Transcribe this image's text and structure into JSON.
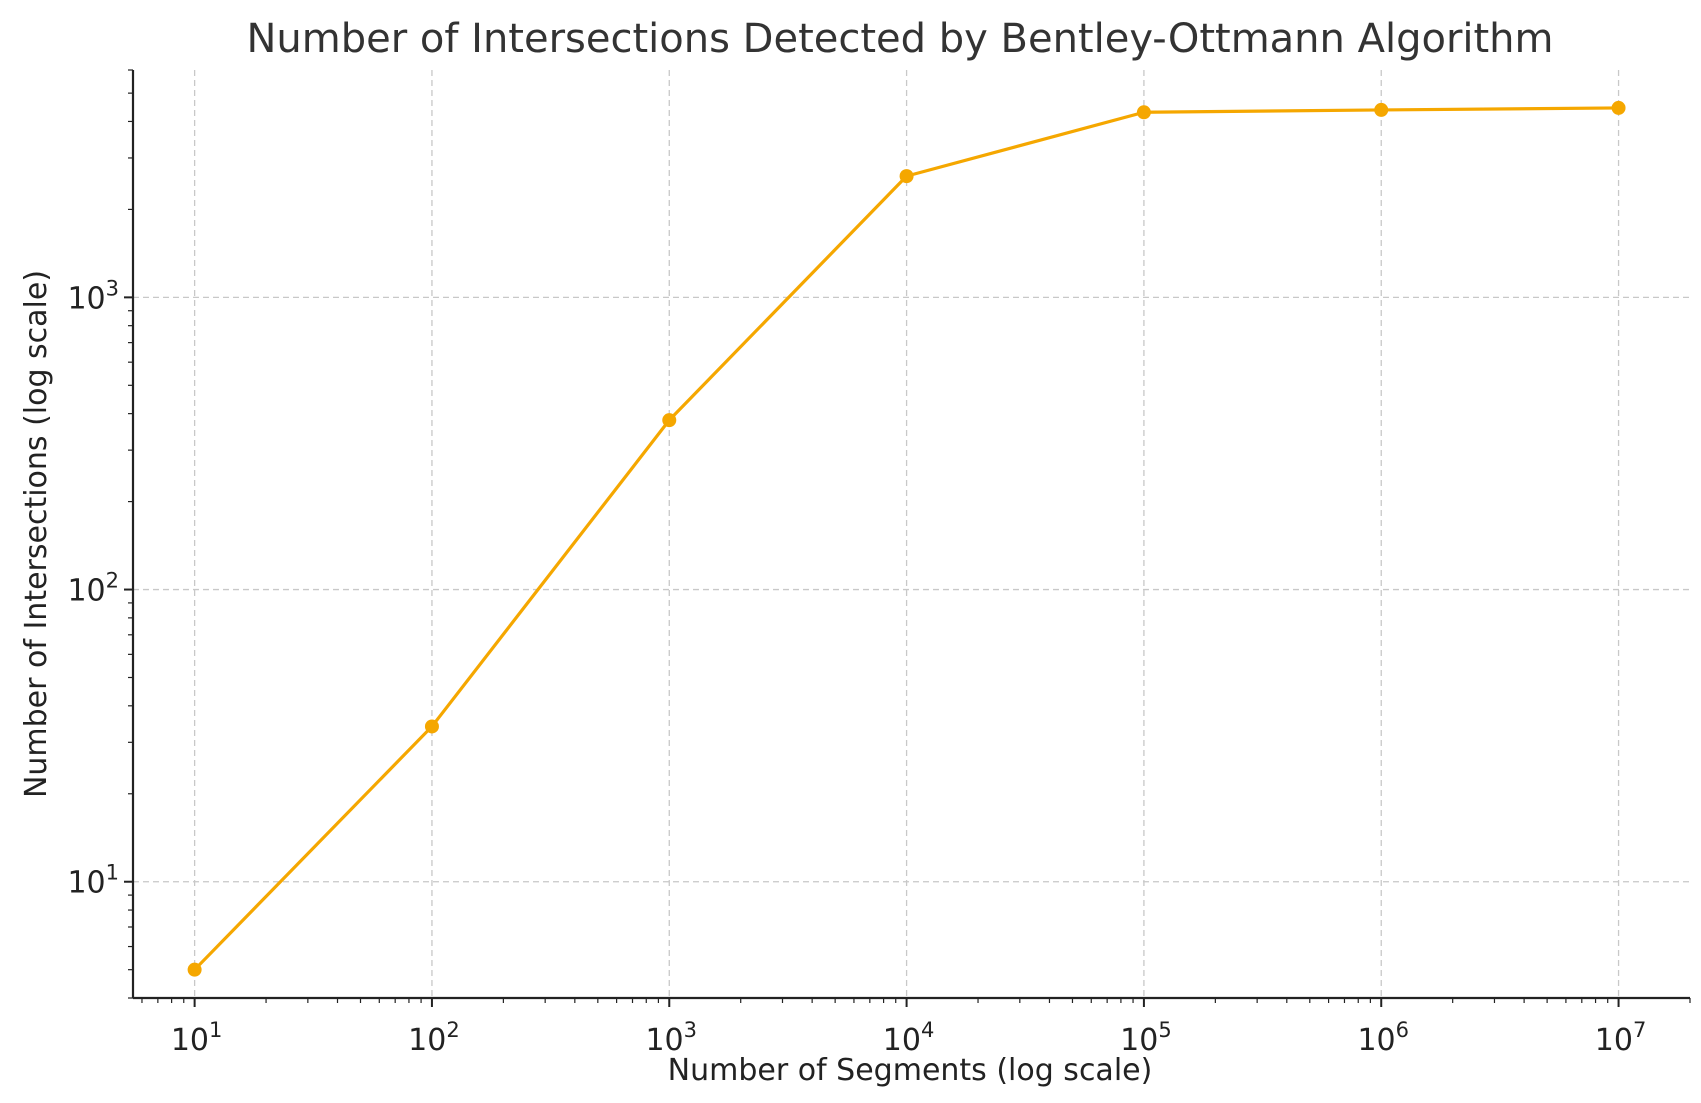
{
  "chart_data": {
    "type": "line",
    "title": "Number of Intersections Detected by Bentley-Ottmann Algorithm",
    "xlabel": "Number of Segments (log scale)",
    "ylabel": "Number of Intersections (log scale)",
    "x_scale": "log",
    "y_scale": "log",
    "xlim": [
      5.5,
      20000000
    ],
    "ylim": [
      4,
      6000
    ],
    "grid": true,
    "x_ticks": [
      {
        "value": 10,
        "base": "10",
        "exp": "1"
      },
      {
        "value": 100,
        "base": "10",
        "exp": "2"
      },
      {
        "value": 1000,
        "base": "10",
        "exp": "3"
      },
      {
        "value": 10000,
        "base": "10",
        "exp": "4"
      },
      {
        "value": 100000,
        "base": "10",
        "exp": "5"
      },
      {
        "value": 1000000,
        "base": "10",
        "exp": "6"
      },
      {
        "value": 10000000,
        "base": "10",
        "exp": "7"
      }
    ],
    "y_ticks": [
      {
        "value": 10,
        "base": "10",
        "exp": "1"
      },
      {
        "value": 100,
        "base": "10",
        "exp": "2"
      },
      {
        "value": 1000,
        "base": "10",
        "exp": "3"
      }
    ],
    "series": [
      {
        "color": "#f5a700",
        "marker": "circle",
        "x": [
          10,
          100,
          1000,
          10000,
          100000,
          1000000,
          10000000
        ],
        "y": [
          5,
          34,
          380,
          2600,
          4300,
          4380,
          4450
        ]
      }
    ]
  }
}
